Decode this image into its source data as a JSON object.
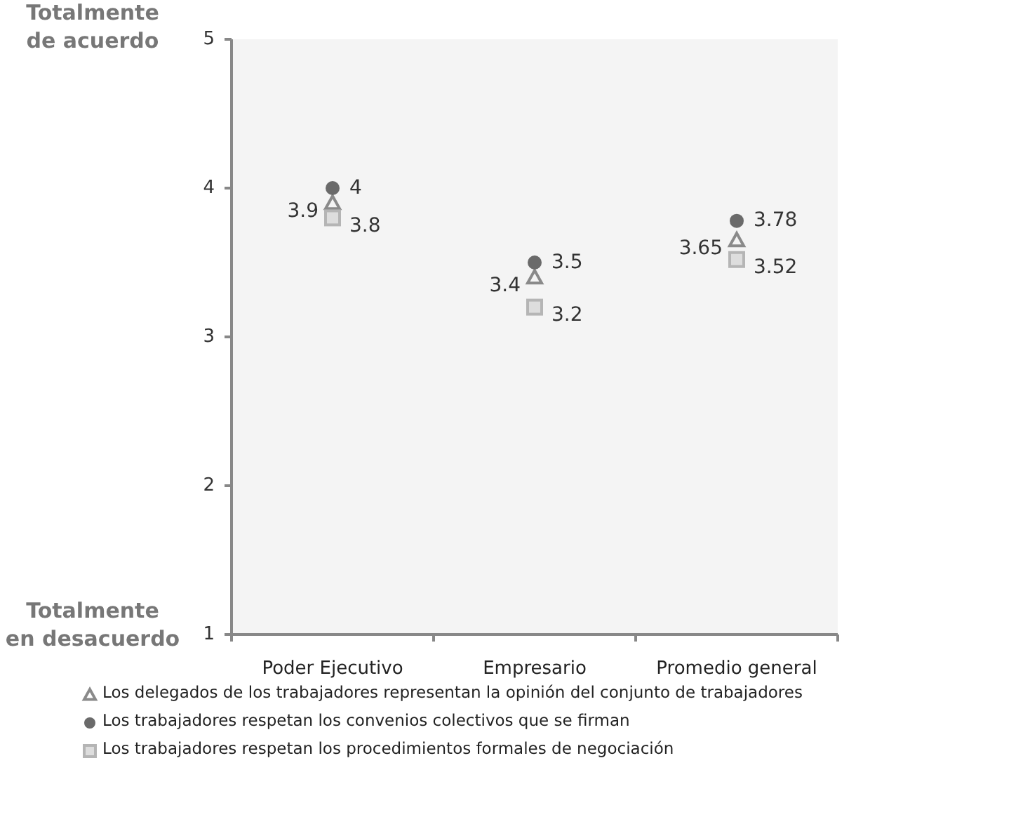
{
  "chart_data": {
    "type": "scatter",
    "categories": [
      "Poder Ejecutivo",
      "Empresario",
      "Promedio general"
    ],
    "series": [
      {
        "name": "Los delegados de los trabajadores representan la opinión del conjunto de trabajadores",
        "color": "#8a8a8a",
        "marker": "triangle",
        "values": [
          3.9,
          3.4,
          3.65
        ]
      },
      {
        "name": "Los trabajadores respetan los convenios colectivos que se firman",
        "color": "#6a6a6a",
        "marker": "circle",
        "values": [
          4,
          3.5,
          3.78
        ]
      },
      {
        "name": "Los trabajadores respetan los procedimientos formales de negociación",
        "color": "#b5b5b5",
        "marker": "square",
        "values": [
          3.8,
          3.2,
          3.52
        ]
      }
    ],
    "ylim": [
      1,
      5
    ],
    "yticks": [
      1,
      2,
      3,
      4,
      5
    ],
    "grid": false,
    "legend": "bottom",
    "data_labels": true,
    "annotations": [
      "Totalmente de acuerdo",
      "Totalmente en desacuerdo"
    ]
  }
}
